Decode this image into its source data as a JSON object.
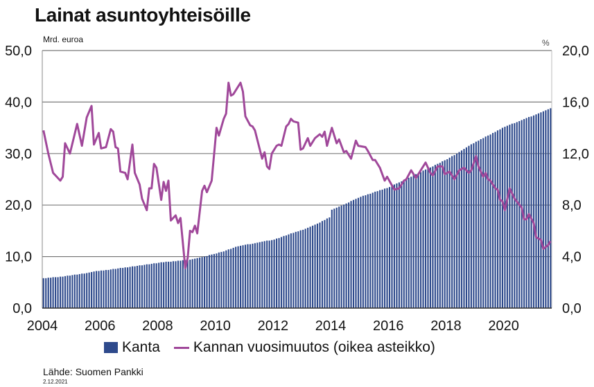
{
  "title": "Lainat asuntoyhteisöille",
  "source": "Lähde: Suomen Pankki",
  "date": "2.12.2021",
  "chart_data": {
    "type": "bar+line",
    "title": "Lainat asuntoyhteisöille",
    "y_left_label": "Mrd. euroa",
    "y_right_label": "%",
    "y_left_range": [
      0,
      50
    ],
    "y_right_range": [
      0,
      20
    ],
    "y_left_ticks": [
      "0,0",
      "10,0",
      "20,0",
      "30,0",
      "40,0",
      "50,0"
    ],
    "y_right_ticks": [
      "0,0",
      "4,0",
      "8,0",
      "12,0",
      "16,0",
      "20,0"
    ],
    "x_ticks": [
      "2004",
      "2006",
      "2008",
      "2010",
      "2012",
      "2014",
      "2016",
      "2018",
      "2020"
    ],
    "x_start": "2004-01",
    "x_end": "2021-08",
    "grid": "horizontal",
    "legend_position": "bottom",
    "colors": {
      "bar": "#2e4a8c",
      "line": "#a0489a"
    },
    "series": [
      {
        "name": "Kanta",
        "type": "bar",
        "axis": "left",
        "frequency": "monthly",
        "values": [
          5.8,
          5.8,
          5.9,
          5.9,
          6.0,
          6.0,
          6.0,
          6.1,
          6.1,
          6.2,
          6.3,
          6.3,
          6.4,
          6.5,
          6.5,
          6.6,
          6.7,
          6.7,
          6.8,
          6.9,
          7.0,
          7.1,
          7.2,
          7.2,
          7.3,
          7.3,
          7.4,
          7.4,
          7.5,
          7.6,
          7.6,
          7.7,
          7.8,
          7.8,
          7.9,
          7.9,
          8.0,
          8.1,
          8.1,
          8.2,
          8.3,
          8.3,
          8.4,
          8.5,
          8.5,
          8.6,
          8.7,
          8.7,
          8.8,
          8.9,
          8.9,
          9.0,
          9.0,
          9.0,
          9.1,
          9.1,
          9.2,
          9.2,
          9.3,
          9.3,
          9.3,
          9.4,
          9.5,
          9.6,
          9.7,
          9.8,
          9.9,
          10.0,
          10.1,
          10.3,
          10.4,
          10.5,
          10.6,
          10.8,
          10.9,
          11.0,
          11.2,
          11.4,
          11.5,
          11.7,
          11.9,
          12.0,
          12.1,
          12.2,
          12.3,
          12.4,
          12.4,
          12.5,
          12.6,
          12.7,
          12.8,
          12.9,
          13.0,
          13.1,
          13.1,
          13.2,
          13.3,
          13.5,
          13.6,
          13.8,
          14.0,
          14.1,
          14.3,
          14.5,
          14.6,
          14.8,
          14.9,
          15.1,
          15.2,
          15.4,
          15.6,
          15.8,
          16.0,
          16.2,
          16.4,
          16.6,
          16.9,
          17.1,
          17.4,
          17.6,
          19.1,
          19.3,
          19.5,
          19.7,
          19.9,
          20.1,
          20.3,
          20.5,
          20.8,
          21.0,
          21.2,
          21.4,
          21.6,
          21.8,
          21.9,
          22.1,
          22.2,
          22.4,
          22.6,
          22.7,
          22.9,
          23.0,
          23.2,
          23.3,
          23.5,
          23.7,
          24.0,
          24.2,
          24.4,
          24.6,
          24.8,
          25.1,
          25.3,
          25.5,
          25.8,
          26.0,
          26.2,
          26.4,
          26.7,
          26.9,
          27.1,
          27.3,
          27.5,
          27.8,
          28.0,
          28.2,
          28.5,
          28.7,
          28.9,
          29.2,
          29.5,
          29.7,
          30.0,
          30.3,
          30.6,
          30.9,
          31.2,
          31.5,
          31.8,
          32.0,
          32.3,
          32.5,
          32.8,
          33.0,
          33.3,
          33.5,
          33.7,
          34.0,
          34.2,
          34.5,
          34.7,
          35.0,
          35.2,
          35.4,
          35.6,
          35.8,
          35.9,
          36.1,
          36.3,
          36.5,
          36.7,
          36.9,
          37.1,
          37.2,
          37.4,
          37.6,
          37.8,
          38.0,
          38.2,
          38.4,
          38.6,
          38.8
        ]
      },
      {
        "name": "Kannan vuosimuutos (oikea asteikko)",
        "type": "line",
        "axis": "right",
        "points": [
          [
            "2004-01",
            13.8
          ],
          [
            "2004-03",
            12.0
          ],
          [
            "2004-05",
            10.5
          ],
          [
            "2004-07",
            10.1
          ],
          [
            "2004-08",
            9.9
          ],
          [
            "2004-09",
            10.2
          ],
          [
            "2004-10",
            12.8
          ],
          [
            "2004-12",
            12.0
          ],
          [
            "2005-03",
            14.3
          ],
          [
            "2005-05",
            12.6
          ],
          [
            "2005-07",
            14.8
          ],
          [
            "2005-09",
            15.7
          ],
          [
            "2005-10",
            12.7
          ],
          [
            "2005-12",
            13.6
          ],
          [
            "2006-01",
            12.4
          ],
          [
            "2006-03",
            12.5
          ],
          [
            "2006-05",
            13.9
          ],
          [
            "2006-06",
            13.7
          ],
          [
            "2006-07",
            12.5
          ],
          [
            "2006-08",
            12.4
          ],
          [
            "2006-09",
            10.6
          ],
          [
            "2006-11",
            10.5
          ],
          [
            "2006-12",
            10.0
          ],
          [
            "2007-02",
            12.7
          ],
          [
            "2007-03",
            10.5
          ],
          [
            "2007-05",
            9.6
          ],
          [
            "2007-06",
            8.5
          ],
          [
            "2007-08",
            7.6
          ],
          [
            "2007-09",
            9.3
          ],
          [
            "2007-10",
            9.3
          ],
          [
            "2007-11",
            11.2
          ],
          [
            "2007-12",
            10.9
          ],
          [
            "2008-02",
            8.4
          ],
          [
            "2008-03",
            9.8
          ],
          [
            "2008-04",
            9.1
          ],
          [
            "2008-05",
            9.9
          ],
          [
            "2008-06",
            6.8
          ],
          [
            "2008-08",
            7.2
          ],
          [
            "2008-09",
            6.6
          ],
          [
            "2008-10",
            7.0
          ],
          [
            "2008-12",
            3.1
          ],
          [
            "2009-01",
            3.9
          ],
          [
            "2009-02",
            6.0
          ],
          [
            "2009-03",
            5.9
          ],
          [
            "2009-04",
            6.4
          ],
          [
            "2009-05",
            5.8
          ],
          [
            "2009-07",
            9.1
          ],
          [
            "2009-08",
            9.5
          ],
          [
            "2009-09",
            9.0
          ],
          [
            "2009-11",
            9.9
          ],
          [
            "2010-01",
            14.0
          ],
          [
            "2010-02",
            13.4
          ],
          [
            "2010-04",
            14.7
          ],
          [
            "2010-05",
            15.1
          ],
          [
            "2010-06",
            17.5
          ],
          [
            "2010-07",
            16.5
          ],
          [
            "2010-08",
            16.6
          ],
          [
            "2010-11",
            17.5
          ],
          [
            "2010-12",
            16.8
          ],
          [
            "2011-01",
            14.9
          ],
          [
            "2011-03",
            14.2
          ],
          [
            "2011-04",
            14.1
          ],
          [
            "2011-05",
            13.8
          ],
          [
            "2011-08",
            11.6
          ],
          [
            "2011-09",
            12.1
          ],
          [
            "2011-10",
            11.0
          ],
          [
            "2011-11",
            10.8
          ],
          [
            "2011-12",
            12.0
          ],
          [
            "2012-02",
            12.6
          ],
          [
            "2012-03",
            12.7
          ],
          [
            "2012-04",
            12.6
          ],
          [
            "2012-06",
            14.1
          ],
          [
            "2012-07",
            14.3
          ],
          [
            "2012-08",
            14.7
          ],
          [
            "2012-09",
            14.5
          ],
          [
            "2012-11",
            14.4
          ],
          [
            "2012-12",
            12.3
          ],
          [
            "2013-01",
            12.4
          ],
          [
            "2013-03",
            13.2
          ],
          [
            "2013-04",
            12.6
          ],
          [
            "2013-06",
            13.2
          ],
          [
            "2013-08",
            13.5
          ],
          [
            "2013-09",
            13.3
          ],
          [
            "2013-10",
            13.7
          ],
          [
            "2013-11",
            12.6
          ],
          [
            "2014-01",
            14.0
          ],
          [
            "2014-03",
            12.8
          ],
          [
            "2014-04",
            13.1
          ],
          [
            "2014-06",
            12.1
          ],
          [
            "2014-07",
            12.2
          ],
          [
            "2014-09",
            11.6
          ],
          [
            "2014-11",
            13.0
          ],
          [
            "2014-12",
            12.6
          ],
          [
            "2015-03",
            12.5
          ],
          [
            "2015-04",
            12.2
          ],
          [
            "2015-06",
            11.5
          ],
          [
            "2015-07",
            11.5
          ],
          [
            "2015-09",
            10.9
          ],
          [
            "2015-11",
            9.9
          ],
          [
            "2015-12",
            10.2
          ],
          [
            "2016-03",
            9.2
          ],
          [
            "2016-05",
            9.3
          ],
          [
            "2016-07",
            9.9
          ],
          [
            "2016-08",
            10.0
          ],
          [
            "2016-10",
            10.7
          ],
          [
            "2016-12",
            10.1
          ],
          [
            "2017-04",
            11.3
          ],
          [
            "2017-06",
            10.5
          ],
          [
            "2017-07",
            10.3
          ],
          [
            "2017-09",
            11.0
          ],
          [
            "2017-11",
            11.0
          ],
          [
            "2017-12",
            10.4
          ],
          [
            "2018-02",
            10.6
          ],
          [
            "2018-04",
            10.0
          ],
          [
            "2018-06",
            10.7
          ],
          [
            "2018-08",
            10.9
          ],
          [
            "2018-10",
            10.5
          ],
          [
            "2018-11",
            10.7
          ],
          [
            "2019-01",
            11.8
          ],
          [
            "2019-02",
            11.0
          ],
          [
            "2019-04",
            10.2
          ],
          [
            "2019-05",
            10.5
          ],
          [
            "2019-06",
            10.0
          ],
          [
            "2019-07",
            9.9
          ],
          [
            "2019-09",
            9.3
          ],
          [
            "2019-10",
            9.2
          ],
          [
            "2019-11",
            8.4
          ],
          [
            "2019-12",
            8.3
          ],
          [
            "2020-01",
            7.6
          ],
          [
            "2020-03",
            9.3
          ],
          [
            "2020-05",
            8.5
          ],
          [
            "2020-08",
            7.8
          ],
          [
            "2020-09",
            6.9
          ],
          [
            "2020-10",
            6.9
          ],
          [
            "2020-11",
            7.3
          ],
          [
            "2021-01",
            6.6
          ],
          [
            "2021-02",
            5.5
          ],
          [
            "2021-04",
            5.3
          ],
          [
            "2021-05",
            4.6
          ],
          [
            "2021-07",
            4.9
          ],
          [
            "2021-08",
            5.2
          ]
        ]
      }
    ]
  }
}
